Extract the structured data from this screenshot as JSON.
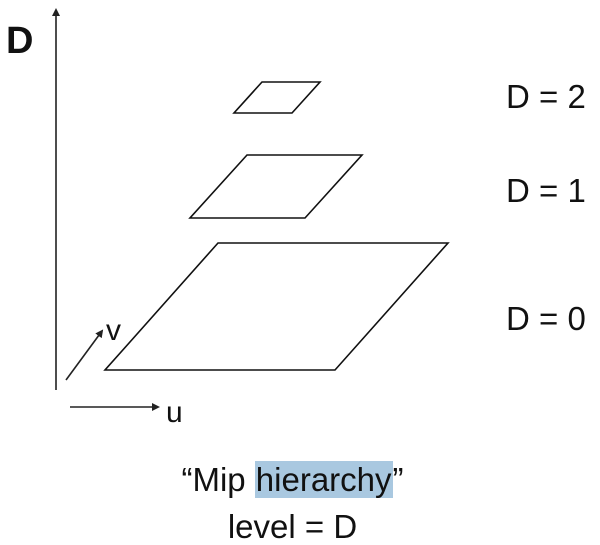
{
  "diagram": {
    "axis_title": "D",
    "axis_v_label": "v",
    "axis_u_label": "u",
    "levels": [
      {
        "label": "D = 2"
      },
      {
        "label": "D = 1"
      },
      {
        "label": "D = 0"
      }
    ],
    "caption": {
      "open_quote": "“",
      "prefix": "Mip ",
      "highlighted": "hierarchy",
      "close_quote": "”",
      "line2": "level = D"
    },
    "colors": {
      "highlight": "#a9c8e0",
      "stroke": "#111111"
    }
  }
}
